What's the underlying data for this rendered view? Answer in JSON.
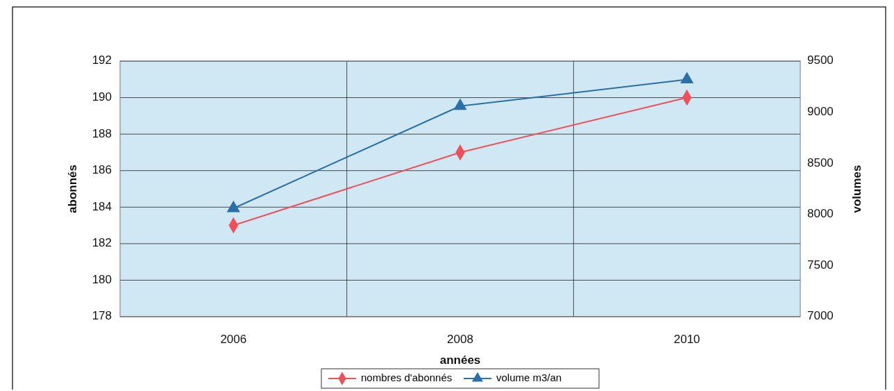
{
  "chart_data": {
    "type": "line",
    "xlabel": "années",
    "ylabel": "abonnés",
    "y2label": "volumes",
    "categories": [
      "2006",
      "2008",
      "2010"
    ],
    "series": [
      {
        "name": "nombres d'abonnés",
        "color": "#f0505a",
        "values": [
          183,
          187,
          190
        ],
        "marker": "diamond"
      },
      {
        "name": "volume m3/an",
        "color": "#2a6fa8",
        "values": [
          8060,
          9060,
          9320
        ],
        "axis": "y2",
        "marker": "triangle"
      }
    ],
    "ylim": [
      178,
      192
    ],
    "yticks": [
      178,
      180,
      182,
      184,
      186,
      188,
      190,
      192
    ],
    "y2lim": [
      7000,
      9500
    ],
    "y2ticks": [
      7000,
      7500,
      8000,
      8500,
      9000,
      9500
    ],
    "grid": true,
    "legend": "bottom"
  }
}
